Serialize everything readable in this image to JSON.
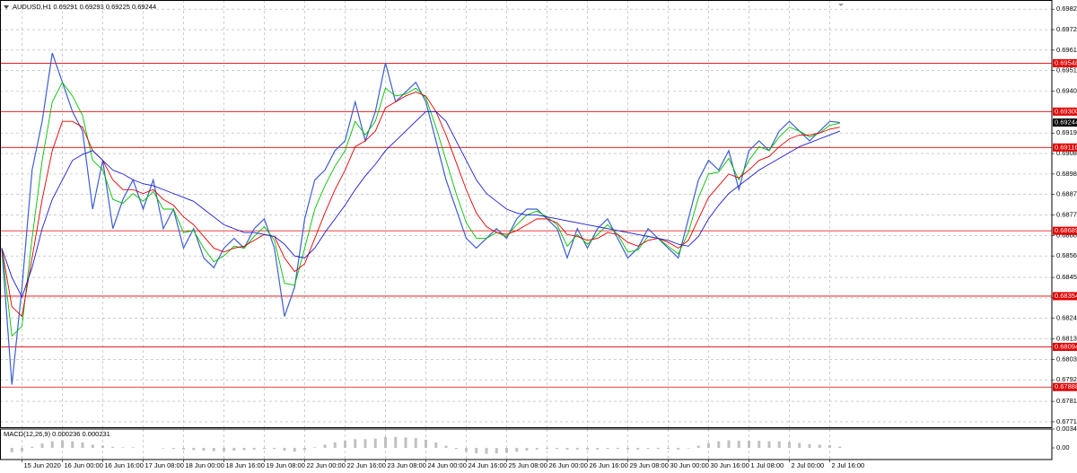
{
  "chart_data": {
    "type": "line",
    "title": "AUDUSD,H1  0.69291 0.69293 0.69225 0.69244",
    "categories": [
      null,
      null,
      "15 Jun 2020",
      null,
      null,
      null,
      "16 Jun 00:00",
      null,
      null,
      null,
      "16 Jun 16:00",
      null,
      null,
      null,
      "17 Jun 08:00",
      null,
      null,
      null,
      "18 Jun 00:00",
      null,
      null,
      null,
      "18 Jun 16:00",
      null,
      null,
      null,
      "19 Jun 08:00",
      null,
      null,
      null,
      "22 Jun 00:00",
      null,
      null,
      null,
      "22 Jun 16:00",
      null,
      null,
      null,
      "23 Jun 08:00",
      null,
      null,
      null,
      "24 Jun 00:00",
      null,
      null,
      null,
      "24 Jun 16:00",
      null,
      null,
      null,
      "25 Jun 08:00",
      null,
      null,
      null,
      "26 Jun 00:00",
      null,
      null,
      null,
      "26 Jun 16:00",
      null,
      null,
      null,
      "29 Jun 08:00",
      null,
      null,
      null,
      "30 Jun 00:00",
      null,
      null,
      null,
      "30 Jun 16:00",
      null,
      null,
      null,
      "1 Jul 08:00",
      null,
      null,
      null,
      "2 Jul 00:00",
      null,
      null,
      null,
      "2 Jul 16:00",
      null
    ],
    "series": [
      {
        "color": "#3d5fd0",
        "values": [
          0.686,
          0.679,
          0.684,
          0.69,
          0.6925,
          0.696,
          0.6945,
          0.693,
          0.692,
          0.688,
          0.6905,
          0.687,
          0.6885,
          0.6895,
          0.688,
          0.6895,
          0.687,
          0.688,
          0.686,
          0.687,
          0.6855,
          0.685,
          0.686,
          0.6865,
          0.686,
          0.687,
          0.6875,
          0.686,
          0.6825,
          0.684,
          0.6875,
          0.6895,
          0.69,
          0.691,
          0.6915,
          0.6935,
          0.6915,
          0.693,
          0.6955,
          0.6935,
          0.694,
          0.6945,
          0.6935,
          0.6915,
          0.6895,
          0.688,
          0.6865,
          0.686,
          0.6865,
          0.687,
          0.6865,
          0.6875,
          0.688,
          0.688,
          0.6875,
          0.687,
          0.6855,
          0.687,
          0.686,
          0.687,
          0.6875,
          0.6865,
          0.6855,
          0.686,
          0.687,
          0.6865,
          0.686,
          0.6855,
          0.6875,
          0.6895,
          0.6905,
          0.69,
          0.691,
          0.689,
          0.691,
          0.6915,
          0.691,
          0.692,
          0.6925,
          0.692,
          0.6915,
          0.692,
          0.6925,
          0.69244
        ]
      },
      {
        "color": "#00c000",
        "values": [
          0.686,
          0.6815,
          0.682,
          0.6865,
          0.6905,
          0.6935,
          0.6945,
          0.6938,
          0.6928,
          0.6905,
          0.69,
          0.6885,
          0.6883,
          0.6888,
          0.6884,
          0.6889,
          0.688,
          0.688,
          0.6868,
          0.6869,
          0.686,
          0.6853,
          0.6856,
          0.6861,
          0.686,
          0.6866,
          0.6871,
          0.6864,
          0.6842,
          0.6841,
          0.686,
          0.688,
          0.6892,
          0.6902,
          0.691,
          0.6925,
          0.6918,
          0.6925,
          0.6942,
          0.6938,
          0.6939,
          0.6942,
          0.6937,
          0.6922,
          0.6905,
          0.6888,
          0.6873,
          0.6865,
          0.6865,
          0.6868,
          0.6866,
          0.6872,
          0.6877,
          0.6879,
          0.6876,
          0.6872,
          0.6861,
          0.6867,
          0.6862,
          0.6867,
          0.6872,
          0.6867,
          0.6858,
          0.6859,
          0.6866,
          0.6865,
          0.6861,
          0.6857,
          0.6868,
          0.6886,
          0.6898,
          0.6899,
          0.6906,
          0.6895,
          0.6905,
          0.6912,
          0.691,
          0.6917,
          0.6922,
          0.692,
          0.6917,
          0.6919,
          0.6923,
          0.6924
        ]
      },
      {
        "color": "#e00000",
        "values": [
          0.686,
          0.683,
          0.6825,
          0.6855,
          0.6885,
          0.691,
          0.6925,
          0.6925,
          0.6922,
          0.691,
          0.6905,
          0.6895,
          0.689,
          0.689,
          0.6888,
          0.689,
          0.6885,
          0.6882,
          0.6876,
          0.6872,
          0.6866,
          0.686,
          0.6858,
          0.686,
          0.6861,
          0.6864,
          0.6867,
          0.6866,
          0.6855,
          0.6848,
          0.6852,
          0.6865,
          0.6878,
          0.689,
          0.69,
          0.6912,
          0.6915,
          0.692,
          0.6932,
          0.6935,
          0.6938,
          0.694,
          0.6938,
          0.693,
          0.6918,
          0.6904,
          0.689,
          0.6878,
          0.6871,
          0.6868,
          0.6867,
          0.6869,
          0.6872,
          0.6875,
          0.6875,
          0.6873,
          0.6867,
          0.6866,
          0.6864,
          0.6865,
          0.6868,
          0.6867,
          0.6863,
          0.6861,
          0.6864,
          0.6865,
          0.6863,
          0.686,
          0.6864,
          0.6875,
          0.6886,
          0.6892,
          0.6898,
          0.6896,
          0.69,
          0.6905,
          0.6907,
          0.6912,
          0.6916,
          0.6918,
          0.6918,
          0.6919,
          0.6921,
          0.6922
        ]
      },
      {
        "color": "#1a1ad0",
        "values": [
          0.686,
          0.6845,
          0.6835,
          0.685,
          0.687,
          0.6885,
          0.6895,
          0.6905,
          0.6908,
          0.691,
          0.6905,
          0.69,
          0.6898,
          0.6895,
          0.6893,
          0.6892,
          0.689,
          0.6888,
          0.6886,
          0.6884,
          0.688,
          0.6876,
          0.6872,
          0.687,
          0.6868,
          0.6868,
          0.6867,
          0.6866,
          0.6862,
          0.6856,
          0.6855,
          0.686,
          0.6868,
          0.6875,
          0.6882,
          0.689,
          0.6897,
          0.6903,
          0.691,
          0.6915,
          0.692,
          0.6925,
          0.693,
          0.693,
          0.6925,
          0.6915,
          0.6905,
          0.6895,
          0.6888,
          0.6884,
          0.688,
          0.6878,
          0.6877,
          0.6877,
          0.6876,
          0.6875,
          0.6874,
          0.6873,
          0.6872,
          0.6871,
          0.687,
          0.6869,
          0.6868,
          0.6867,
          0.6866,
          0.6865,
          0.6864,
          0.6862,
          0.6861,
          0.6866,
          0.6875,
          0.6882,
          0.6888,
          0.6892,
          0.6896,
          0.69,
          0.6903,
          0.6906,
          0.6909,
          0.6912,
          0.6914,
          0.6916,
          0.6918,
          0.692
        ]
      }
    ],
    "ylim": [
      0.67682,
      0.69872
    ],
    "yticks": [
      0.69825,
      {
        "value": 0.6972,
        "label": "0.69720"
      },
      0.69615,
      {
        "value": 0.6951,
        "label": "0.69510"
      },
      0.69405,
      {
        "value": 0.6919,
        "label": "0.69190"
      },
      0.69085,
      {
        "value": 0.6898,
        "label": "0.68980"
      },
      0.68875,
      {
        "value": 0.6877,
        "label": "0.68770"
      },
      0.68665,
      {
        "value": 0.6856,
        "label": "0.68560"
      },
      {
        "value": 0.6845,
        "label": "0.68450"
      },
      0.68345,
      {
        "value": 0.6824,
        "label": "0.68240"
      },
      0.68135,
      {
        "value": 0.6803,
        "label": "0.68030"
      },
      0.67925,
      0.67815,
      {
        "value": 0.6771,
        "label": "0.67710"
      }
    ],
    "grid": true,
    "levels": [
      0.69548,
      {
        "value": 0.693,
        "label": "0.69300"
      },
      0.69116,
      0.68689,
      0.68354,
      0.68094,
      0.67888
    ],
    "level_color": "#e00000",
    "current_price": 0.69244,
    "indicator": {
      "title": "MACD(12,26,9) 0.000236 0.000231",
      "color": "#c0c0c0",
      "ylim": [
        -0.00213,
        0.003449
      ],
      "yticks": [
        0.003449,
        {
          "value": 0,
          "label": "0.00"
        }
      ],
      "values": [
        0,
        -0.0008,
        -0.0006,
        0.0002,
        0.0008,
        0.0012,
        0.0014,
        0.0012,
        0.001,
        0.0006,
        0.0004,
        0.0002,
        0.0001,
        0.0001,
        0,
        0,
        -0.0001,
        -0.0002,
        -0.0003,
        -0.0004,
        -0.0005,
        -0.0006,
        -0.0006,
        -0.0005,
        -0.0004,
        -0.0003,
        -0.0002,
        -0.0002,
        -0.0005,
        -0.0007,
        -0.0004,
        0.0001,
        0.0006,
        0.001,
        0.0013,
        0.0016,
        0.0016,
        0.0017,
        0.002,
        0.002,
        0.0019,
        0.0018,
        0.0015,
        0.001,
        0.0004,
        -0.0002,
        -0.0007,
        -0.001,
        -0.0011,
        -0.001,
        -0.0009,
        -0.0007,
        -0.0005,
        -0.0003,
        -0.0002,
        -0.0002,
        -0.0003,
        -0.0003,
        -0.0003,
        -0.0003,
        -0.0002,
        -0.0002,
        -0.0003,
        -0.0003,
        -0.0002,
        -0.0002,
        -0.0002,
        -0.0003,
        -0.0001,
        0.0004,
        0.0009,
        0.0012,
        0.0014,
        0.0013,
        0.0013,
        0.0013,
        0.0012,
        0.0012,
        0.0011,
        0.0009,
        0.0007,
        0.0006,
        0.0005,
        0.000236
      ]
    }
  }
}
